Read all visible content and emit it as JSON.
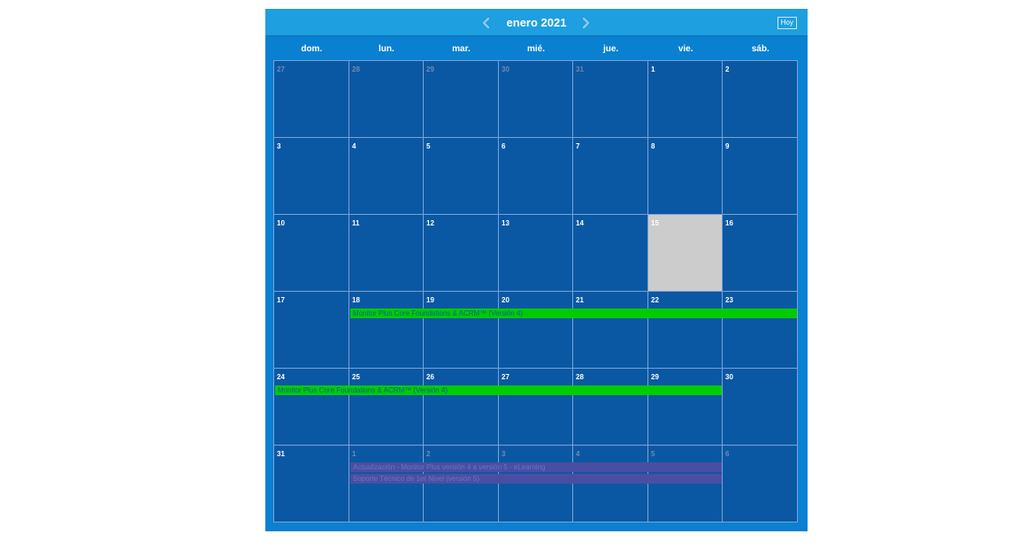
{
  "header": {
    "title": "enero 2021",
    "prev_icon": "chevron-left-icon",
    "next_icon": "chevron-right-icon",
    "today_label": "Hoy"
  },
  "weekdays": [
    "dom.",
    "lun.",
    "mar.",
    "mié.",
    "jue.",
    "vie.",
    "sáb."
  ],
  "weeks": [
    [
      {
        "d": "27",
        "other": true
      },
      {
        "d": "28",
        "other": true
      },
      {
        "d": "29",
        "other": true
      },
      {
        "d": "30",
        "other": true
      },
      {
        "d": "31",
        "other": true
      },
      {
        "d": "1"
      },
      {
        "d": "2"
      }
    ],
    [
      {
        "d": "3"
      },
      {
        "d": "4"
      },
      {
        "d": "5"
      },
      {
        "d": "6"
      },
      {
        "d": "7"
      },
      {
        "d": "8"
      },
      {
        "d": "9"
      }
    ],
    [
      {
        "d": "10"
      },
      {
        "d": "11"
      },
      {
        "d": "12"
      },
      {
        "d": "13"
      },
      {
        "d": "14"
      },
      {
        "d": "15",
        "today": true
      },
      {
        "d": "16"
      }
    ],
    [
      {
        "d": "17"
      },
      {
        "d": "18"
      },
      {
        "d": "19"
      },
      {
        "d": "20"
      },
      {
        "d": "21"
      },
      {
        "d": "22"
      },
      {
        "d": "23"
      }
    ],
    [
      {
        "d": "24"
      },
      {
        "d": "25"
      },
      {
        "d": "26"
      },
      {
        "d": "27"
      },
      {
        "d": "28"
      },
      {
        "d": "29"
      },
      {
        "d": "30"
      }
    ],
    [
      {
        "d": "31"
      },
      {
        "d": "1",
        "other": true
      },
      {
        "d": "2",
        "other": true
      },
      {
        "d": "3",
        "other": true
      },
      {
        "d": "4",
        "other": true
      },
      {
        "d": "5",
        "other": true
      },
      {
        "d": "6",
        "other": true
      }
    ]
  ],
  "events": [
    {
      "title": "Monitor Plus Core Foundations & ACRM™ (Versión 4)",
      "week": 3,
      "start_col": 1,
      "end_col": 6,
      "row": 0,
      "color": "green"
    },
    {
      "title": "Monitor Plus Core Foundations & ACRM™ (Versión 4)",
      "week": 4,
      "start_col": 0,
      "end_col": 5,
      "row": 0,
      "color": "green"
    },
    {
      "title": "Actualización - Monitor Plus versión 4 a versión 5 - eLearning",
      "week": 5,
      "start_col": 1,
      "end_col": 5,
      "row": 0,
      "color": "purple"
    },
    {
      "title": "Soporte Técnico de 1er Nivel (versión 5)",
      "week": 5,
      "start_col": 1,
      "end_col": 5,
      "row": 1,
      "color": "purple"
    }
  ],
  "colors": {
    "header_bg": "#1e9fdf",
    "frame_bg": "#0a80d1",
    "grid_bg": "#0a58a3",
    "today_bg": "#cccccc",
    "event_green": "#00cc00",
    "event_purple": "#4a4ea3"
  }
}
